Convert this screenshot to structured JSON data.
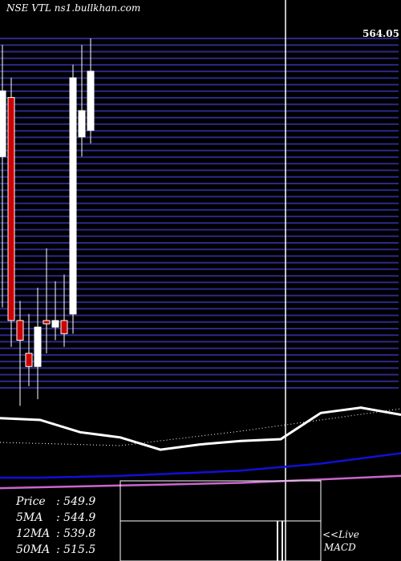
{
  "header": {
    "title": "NSE VTL  ns1.bullkhan.com"
  },
  "chart_data": {
    "type": "candlestick",
    "symbol": "VTL",
    "exchange": "NSE",
    "price_axis_top_label": "564.05",
    "ylim": [
      512,
      566
    ],
    "candles": [
      {
        "o": 548,
        "h": 565,
        "l": 525,
        "c": 558,
        "color": "white"
      },
      {
        "o": 557,
        "h": 560,
        "l": 519,
        "c": 523,
        "color": "red"
      },
      {
        "o": 523,
        "h": 526,
        "l": 510,
        "c": 520,
        "color": "red"
      },
      {
        "o": 518,
        "h": 524,
        "l": 513,
        "c": 516,
        "color": "red"
      },
      {
        "o": 516,
        "h": 528,
        "l": 511,
        "c": 522,
        "color": "white"
      },
      {
        "o": 523,
        "h": 534,
        "l": 518,
        "c": 522.5,
        "color": "red"
      },
      {
        "o": 523,
        "h": 529,
        "l": 520,
        "c": 522,
        "color": "white"
      },
      {
        "o": 523,
        "h": 530,
        "l": 519,
        "c": 521,
        "color": "red"
      },
      {
        "o": 524,
        "h": 562,
        "l": 521,
        "c": 560,
        "color": "white"
      },
      {
        "o": 551,
        "h": 565,
        "l": 548,
        "c": 555,
        "color": "white"
      },
      {
        "o": 552,
        "h": 566,
        "l": 550,
        "c": 561,
        "color": "white"
      }
    ],
    "moving_averages": [
      {
        "name": "5MA",
        "color": "#ffffff",
        "values": [
          560,
          559,
          552,
          549,
          542,
          545,
          547,
          548,
          563,
          566,
          562
        ]
      },
      {
        "name": "12MA",
        "color": "#1010d8",
        "values": [
          526,
          526,
          526.5,
          527,
          528,
          529,
          530,
          532,
          534,
          537,
          540
        ]
      },
      {
        "name": "50MA",
        "color": "#cc66cc",
        "values": [
          520,
          520.5,
          521,
          521.5,
          522,
          522.5,
          523,
          524,
          525,
          526,
          527
        ]
      }
    ],
    "legend": [
      {
        "label": "Price",
        "value": "549.9"
      },
      {
        "label": "5MA",
        "value": "544.9"
      },
      {
        "label": "12MA",
        "value": "539.8"
      },
      {
        "label": "50MA",
        "value": "515.5"
      }
    ]
  },
  "footer": {
    "live_label": "<<Live",
    "macd_label": "MACD"
  }
}
